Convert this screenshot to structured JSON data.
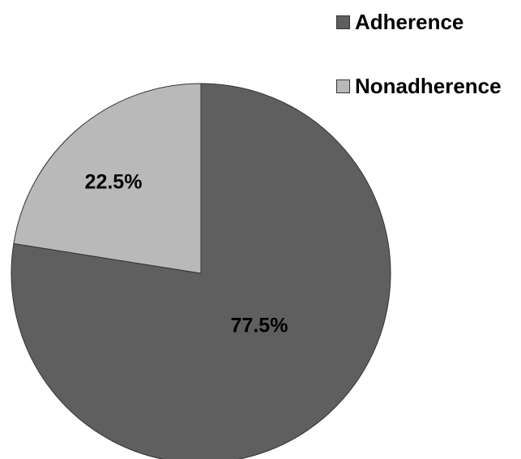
{
  "chart_data": {
    "type": "pie",
    "title": "",
    "start_angle_deg": 90,
    "direction": "clockwise",
    "legend_position": "top-right",
    "slices": [
      {
        "name": "Adherence",
        "value": 77.5,
        "label": "77.5%",
        "color": "#5f5f5f"
      },
      {
        "name": "Nonadherence",
        "value": 22.5,
        "label": "22.5%",
        "color": "#b9b9b9"
      }
    ]
  },
  "colors": {
    "edge": "#333333",
    "background": "#ffffff"
  }
}
